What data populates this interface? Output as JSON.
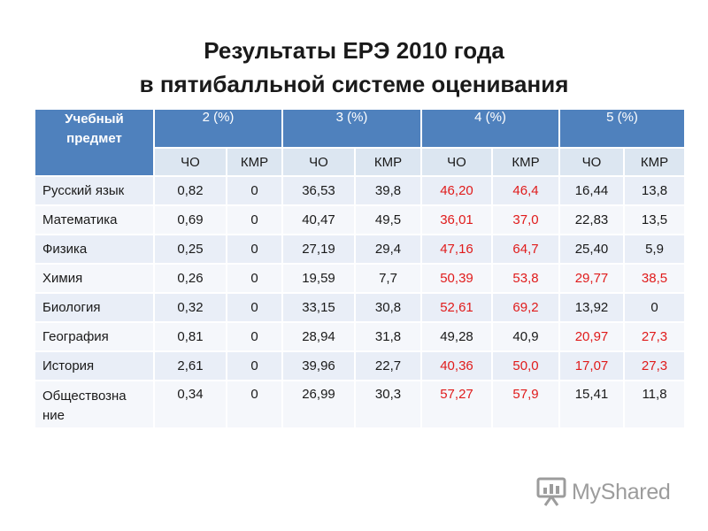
{
  "title": {
    "line1": "Результаты ЕРЭ 2010 года",
    "line2": "в пятибалльной системе оценивания"
  },
  "table": {
    "subject_header": "Учебный предмет",
    "grade_headers": [
      "2 (%)",
      "3 (%)",
      "4 (%)",
      "5 (%)"
    ],
    "sub_headers": [
      "ЧО",
      "КМР",
      "ЧО",
      "КМР",
      "ЧО",
      "КМР",
      "ЧО",
      "КМР"
    ],
    "rows": [
      {
        "subject": "Русский язык",
        "values": [
          "0,82",
          "0",
          "36,53",
          "39,8",
          "46,20",
          "46,4",
          "16,44",
          "13,8"
        ],
        "red": [
          false,
          false,
          false,
          false,
          true,
          true,
          false,
          false
        ]
      },
      {
        "subject": "Математика",
        "values": [
          "0,69",
          "0",
          "40,47",
          "49,5",
          "36,01",
          "37,0",
          "22,83",
          "13,5"
        ],
        "red": [
          false,
          false,
          false,
          false,
          true,
          true,
          false,
          false
        ]
      },
      {
        "subject": "Физика",
        "values": [
          "0,25",
          "0",
          "27,19",
          "29,4",
          "47,16",
          "64,7",
          "25,40",
          "5,9"
        ],
        "red": [
          false,
          false,
          false,
          false,
          true,
          true,
          false,
          false
        ]
      },
      {
        "subject": "Химия",
        "values": [
          "0,26",
          "0",
          "19,59",
          "7,7",
          "50,39",
          "53,8",
          "29,77",
          "38,5"
        ],
        "red": [
          false,
          false,
          false,
          false,
          true,
          true,
          true,
          true
        ]
      },
      {
        "subject": "Биология",
        "values": [
          "0,32",
          "0",
          "33,15",
          "30,8",
          "52,61",
          "69,2",
          "13,92",
          "0"
        ],
        "red": [
          false,
          false,
          false,
          false,
          true,
          true,
          false,
          false
        ]
      },
      {
        "subject": "География",
        "values": [
          "0,81",
          "0",
          "28,94",
          "31,8",
          "49,28",
          "40,9",
          "20,97",
          "27,3"
        ],
        "red": [
          false,
          false,
          false,
          false,
          false,
          false,
          true,
          true
        ]
      },
      {
        "subject": "История",
        "values": [
          "2,61",
          "0",
          "39,96",
          "22,7",
          "40,36",
          "50,0",
          "17,07",
          "27,3"
        ],
        "red": [
          false,
          false,
          false,
          false,
          true,
          true,
          true,
          true
        ]
      },
      {
        "subject": "Обществознание",
        "subject_lines": [
          "Обществозна",
          "ние"
        ],
        "values": [
          "0,34",
          "0",
          "26,99",
          "30,3",
          "57,27",
          "57,9",
          "15,41",
          "11,8"
        ],
        "red": [
          false,
          false,
          false,
          false,
          true,
          true,
          false,
          false
        ]
      }
    ]
  },
  "colors": {
    "header_blue": "#4f81bd",
    "highlight_red": "#e01b1b"
  },
  "watermark": {
    "text": "MyShared",
    "icon": "presentation-board-icon"
  }
}
